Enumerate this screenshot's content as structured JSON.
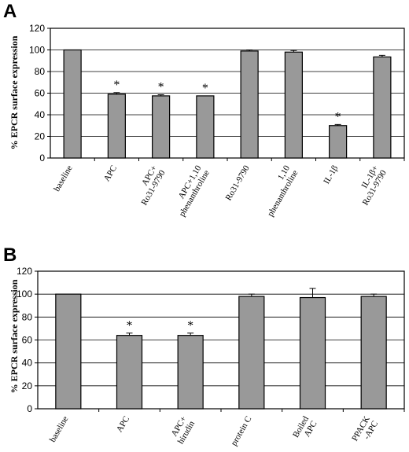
{
  "chart_data": [
    {
      "panel": "A",
      "type": "bar",
      "ylabel": "% EPCR surface expression",
      "ylim": [
        0,
        120
      ],
      "yticks": [
        0,
        20,
        40,
        60,
        80,
        100,
        120
      ],
      "grid": true,
      "categories": [
        [
          "baseline"
        ],
        [
          "APC"
        ],
        [
          "APC+",
          "Ro31-9790"
        ],
        [
          "APC+1,10",
          "phenanthroline"
        ],
        [
          "Ro31-9790"
        ],
        [
          "1,10",
          "phenanthroline"
        ],
        [
          "IL-1β"
        ],
        [
          "IL-1β+",
          "Ro31-9790"
        ]
      ],
      "values": [
        100,
        59,
        57.5,
        57.5,
        99,
        98,
        30,
        93.5
      ],
      "errors": [
        0,
        1.5,
        1,
        0,
        1,
        1.5,
        1,
        1.5
      ],
      "significant": [
        false,
        true,
        true,
        true,
        false,
        false,
        true,
        false
      ],
      "marker": "*"
    },
    {
      "panel": "B",
      "type": "bar",
      "ylabel": "% EPCR surface expression",
      "ylim": [
        0,
        120
      ],
      "yticks": [
        0,
        20,
        40,
        60,
        80,
        100,
        120
      ],
      "grid": true,
      "categories": [
        [
          "baseline"
        ],
        [
          "APC"
        ],
        [
          "APC+",
          "hirudin"
        ],
        [
          "protein C"
        ],
        [
          "Boiled",
          "APC"
        ],
        [
          "PPACK",
          "-APC"
        ]
      ],
      "values": [
        100,
        64,
        64,
        98,
        97,
        98
      ],
      "errors": [
        0,
        2,
        2,
        2,
        8,
        2
      ],
      "significant": [
        false,
        true,
        true,
        false,
        false,
        false
      ],
      "marker": "*"
    }
  ]
}
